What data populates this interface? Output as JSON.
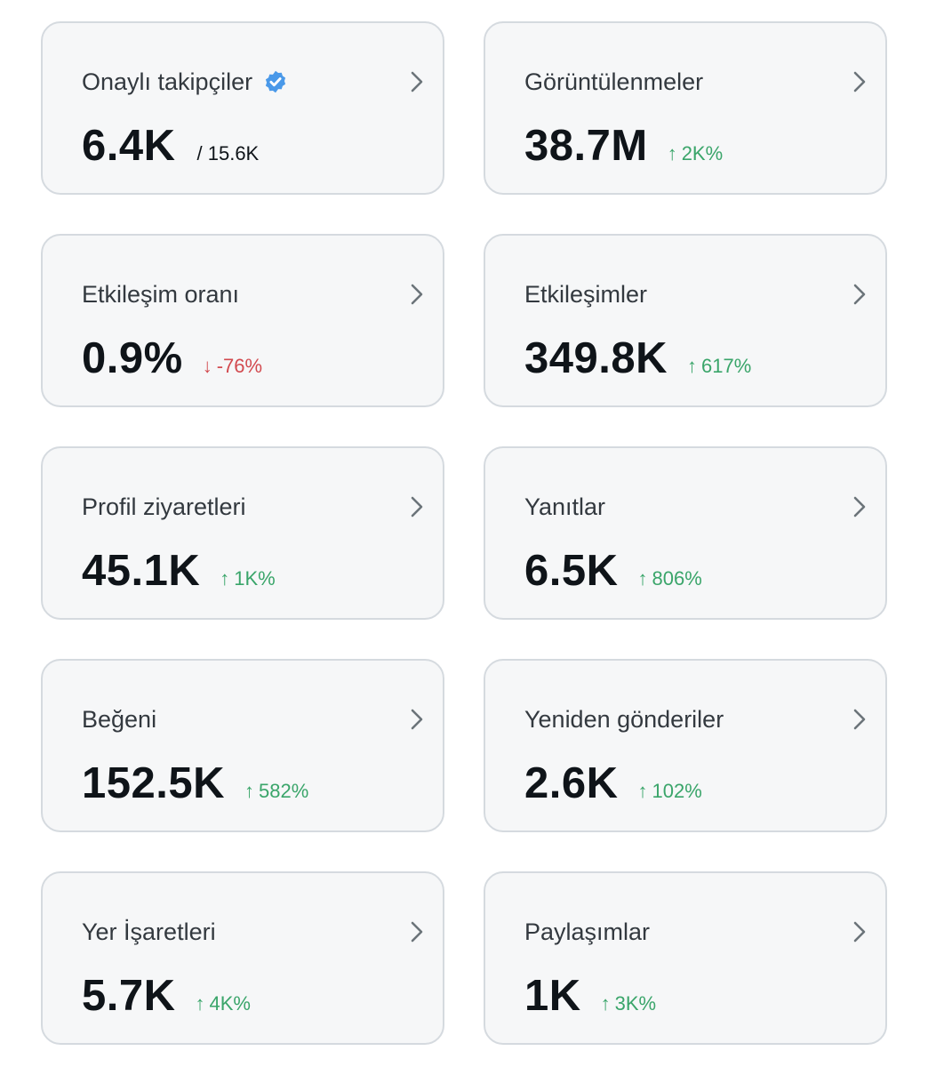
{
  "colors": {
    "positive": "#3aa56a",
    "negative": "#d24a4f",
    "verified_badge": "#4a99e9"
  },
  "cards": [
    {
      "title": "Onaylı takipçiler",
      "value": "6.4K",
      "total": "/ 15.6K",
      "verified": true,
      "delta": "",
      "direction": ""
    },
    {
      "title": "Görüntülenmeler",
      "value": "38.7M",
      "total": "",
      "verified": false,
      "delta": "2K%",
      "direction": "up"
    },
    {
      "title": "Etkileşim oranı",
      "value": "0.9%",
      "total": "",
      "verified": false,
      "delta": "-76%",
      "direction": "down"
    },
    {
      "title": "Etkileşimler",
      "value": "349.8K",
      "total": "",
      "verified": false,
      "delta": "617%",
      "direction": "up"
    },
    {
      "title": "Profil ziyaretleri",
      "value": "45.1K",
      "total": "",
      "verified": false,
      "delta": "1K%",
      "direction": "up"
    },
    {
      "title": "Yanıtlar",
      "value": "6.5K",
      "total": "",
      "verified": false,
      "delta": "806%",
      "direction": "up"
    },
    {
      "title": "Beğeni",
      "value": "152.5K",
      "total": "",
      "verified": false,
      "delta": "582%",
      "direction": "up"
    },
    {
      "title": "Yeniden gönderiler",
      "value": "2.6K",
      "total": "",
      "verified": false,
      "delta": "102%",
      "direction": "up"
    },
    {
      "title": "Yer İşaretleri",
      "value": "5.7K",
      "total": "",
      "verified": false,
      "delta": "4K%",
      "direction": "up"
    },
    {
      "title": "Paylaşımlar",
      "value": "1K",
      "total": "",
      "verified": false,
      "delta": "3K%",
      "direction": "up"
    }
  ]
}
